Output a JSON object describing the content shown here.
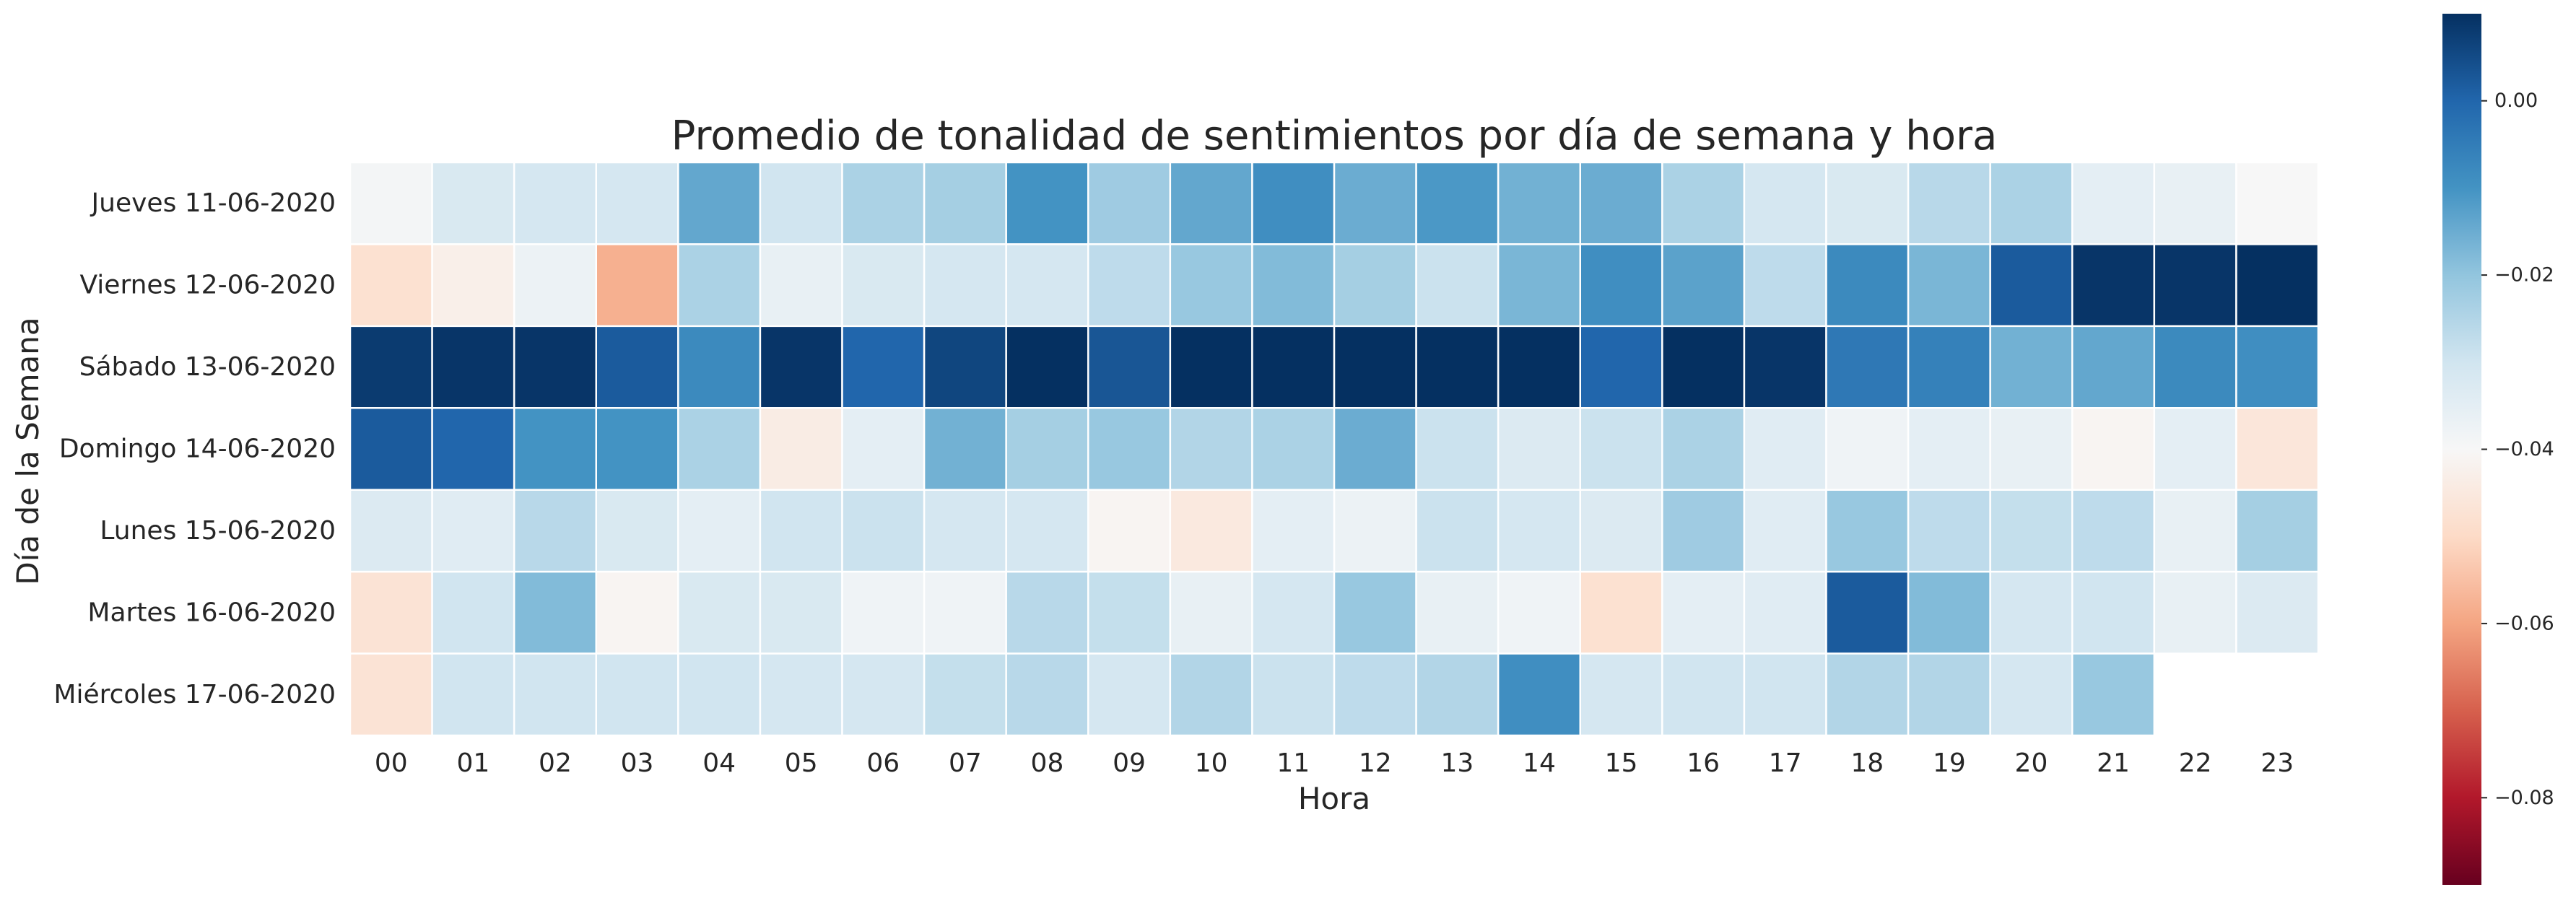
{
  "chart_data": {
    "type": "heatmap",
    "title": "Promedio de tonalidad de sentimientos por día de semana y hora",
    "xlabel": "Hora",
    "ylabel": "Día de la Semana",
    "x_categories": [
      "00",
      "01",
      "02",
      "03",
      "04",
      "05",
      "06",
      "07",
      "08",
      "09",
      "10",
      "11",
      "12",
      "13",
      "14",
      "15",
      "16",
      "17",
      "18",
      "19",
      "20",
      "21",
      "22",
      "23"
    ],
    "y_categories": [
      "Jueves 11-06-2020",
      "Viernes 12-06-2020",
      "Sábado 13-06-2020",
      "Domingo 14-06-2020",
      "Lunes 15-06-2020",
      "Martes 16-06-2020",
      "Miércoles 17-06-2020"
    ],
    "values": [
      [
        -0.039,
        -0.032,
        -0.031,
        -0.031,
        -0.014,
        -0.03,
        -0.024,
        -0.023,
        -0.01,
        -0.022,
        -0.014,
        -0.009,
        -0.015,
        -0.011,
        -0.016,
        -0.015,
        -0.024,
        -0.031,
        -0.032,
        -0.026,
        -0.024,
        -0.035,
        -0.036,
        -0.04
      ],
      [
        -0.048,
        -0.043,
        -0.037,
        -0.058,
        -0.024,
        -0.036,
        -0.032,
        -0.031,
        -0.031,
        -0.027,
        -0.021,
        -0.018,
        -0.023,
        -0.029,
        -0.017,
        -0.009,
        -0.013,
        -0.027,
        -0.008,
        -0.017,
        0.002,
        0.009,
        0.009,
        0.01
      ],
      [
        0.008,
        0.009,
        0.009,
        0.002,
        -0.008,
        0.009,
        0.0,
        0.006,
        0.01,
        0.003,
        0.01,
        0.01,
        0.011,
        0.011,
        0.012,
        0.0,
        0.01,
        0.009,
        -0.004,
        -0.006,
        -0.016,
        -0.014,
        -0.008,
        -0.009
      ],
      [
        0.002,
        0.0,
        -0.01,
        -0.01,
        -0.024,
        -0.044,
        -0.035,
        -0.016,
        -0.023,
        -0.021,
        -0.025,
        -0.024,
        -0.015,
        -0.029,
        -0.033,
        -0.029,
        -0.024,
        -0.034,
        -0.038,
        -0.035,
        -0.036,
        -0.041,
        -0.035,
        -0.046
      ],
      [
        -0.033,
        -0.034,
        -0.026,
        -0.032,
        -0.035,
        -0.03,
        -0.029,
        -0.031,
        -0.031,
        -0.041,
        -0.045,
        -0.035,
        -0.037,
        -0.029,
        -0.031,
        -0.033,
        -0.022,
        -0.034,
        -0.021,
        -0.027,
        -0.028,
        -0.027,
        -0.036,
        -0.023
      ],
      [
        -0.047,
        -0.03,
        -0.018,
        -0.041,
        -0.032,
        -0.032,
        -0.038,
        -0.038,
        -0.026,
        -0.028,
        -0.036,
        -0.031,
        -0.021,
        -0.036,
        -0.038,
        -0.048,
        -0.035,
        -0.034,
        0.002,
        -0.018,
        -0.031,
        -0.03,
        -0.036,
        -0.033
      ],
      [
        -0.047,
        -0.03,
        -0.03,
        -0.03,
        -0.03,
        -0.031,
        -0.031,
        -0.028,
        -0.026,
        -0.031,
        -0.025,
        -0.029,
        -0.027,
        -0.025,
        -0.009,
        -0.031,
        -0.03,
        -0.03,
        -0.025,
        -0.025,
        -0.031,
        -0.021,
        null,
        null
      ]
    ],
    "vmin": -0.09,
    "vmax": 0.01,
    "colormap": "RdBu",
    "colorbar_ticks": [
      0.0,
      -0.02,
      -0.04,
      -0.06,
      -0.08
    ],
    "colorbar_tick_labels": [
      "0.00",
      "−0.02",
      "−0.04",
      "−0.06",
      "−0.08"
    ],
    "grid": false
  }
}
